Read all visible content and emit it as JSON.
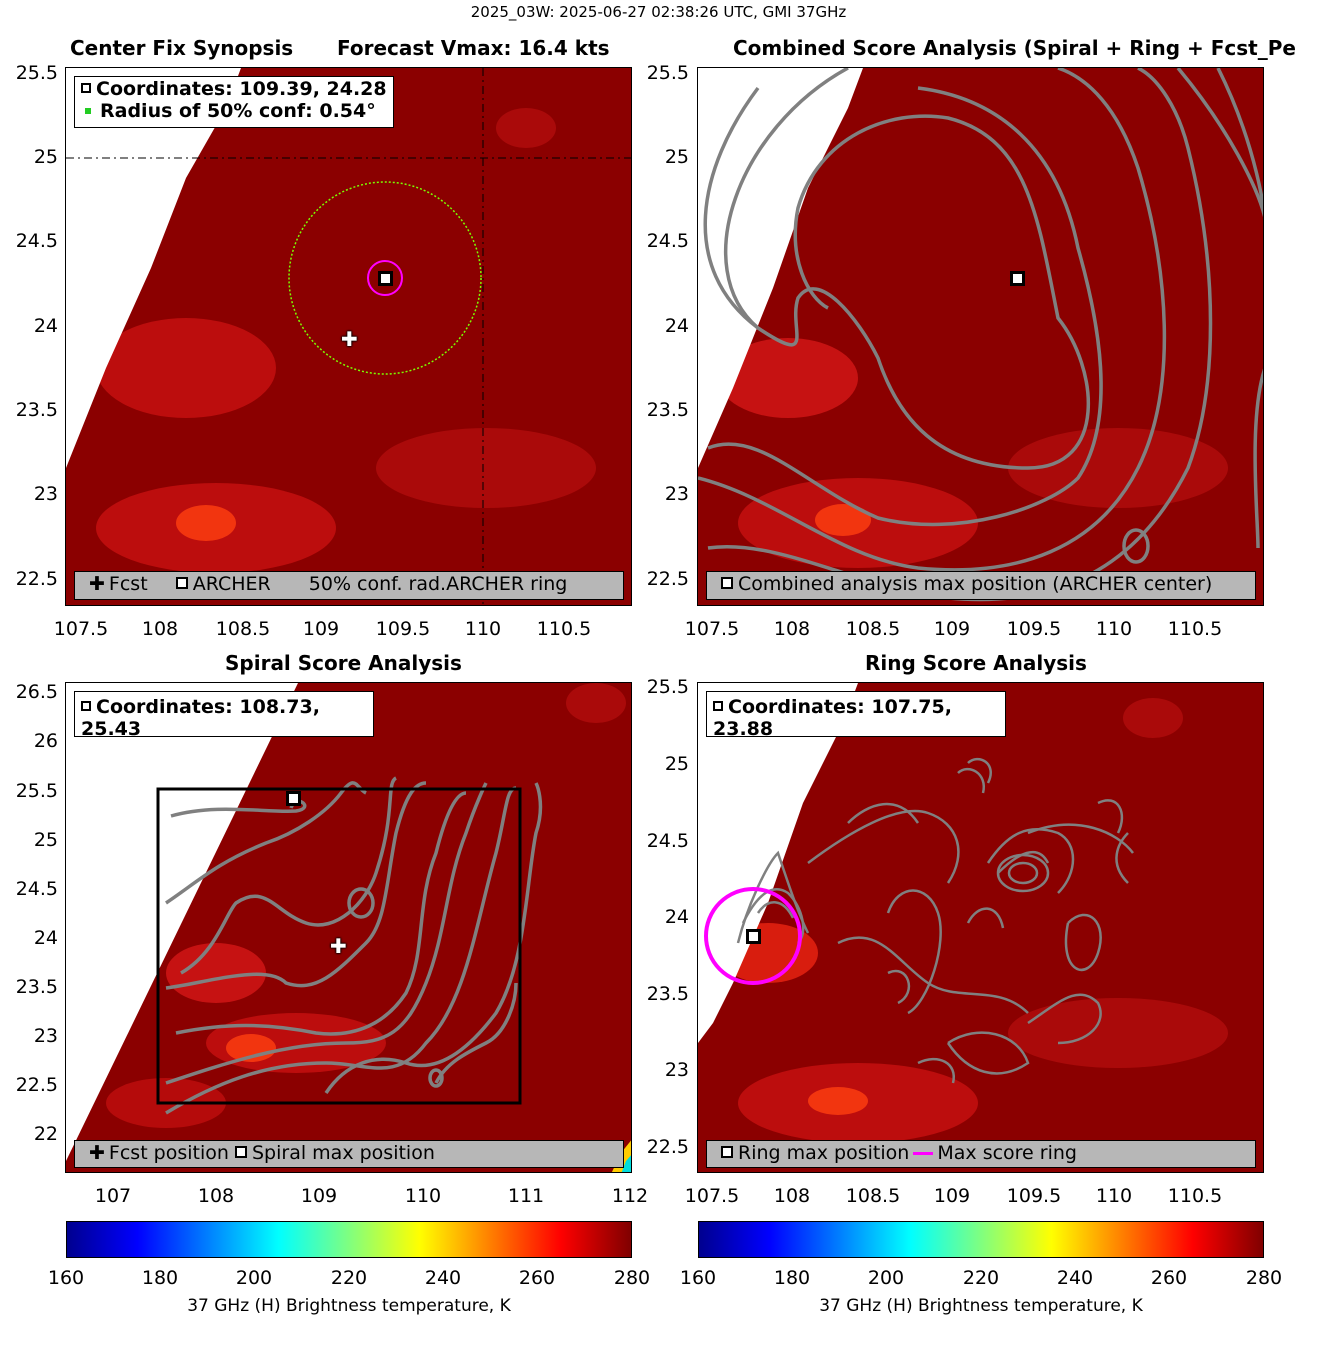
{
  "suptitle": "2025_03W: 2025-06-27 02:38:26 UTC, GMI 37GHz",
  "colors": {
    "background_tb": "#8b0000",
    "contour": "#808080",
    "conf_circle": "#7cfc00",
    "archer_ring": "#ff00ff",
    "legend_bg": "#b7b7b7",
    "no_data": "#ffffff"
  },
  "panels": {
    "tl": {
      "title_left": "Center Fix Synopsis",
      "title_right": "Forecast Vmax: 16.4 kts",
      "info": [
        "Coordinates: 109.39, 24.28",
        "Radius of 50% conf: 0.54°"
      ],
      "legend": {
        "fcst": "Fcst",
        "archer": "ARCHER",
        "conf": "50% conf. rad.",
        "ring": "ARCHER ring"
      },
      "yticks": [
        "25.5",
        "25",
        "24.5",
        "24",
        "23.5",
        "23",
        "22.5"
      ],
      "xticks": [
        "107.5",
        "108",
        "108.5",
        "109",
        "109.5",
        "110",
        "110.5"
      ]
    },
    "tr": {
      "title": "Combined Score Analysis (Spiral + Ring + Fcst_Pe",
      "legend": "Combined analysis max position (ARCHER center)",
      "yticks": [
        "25.5",
        "25",
        "24.5",
        "24",
        "23.5",
        "23",
        "22.5"
      ],
      "xticks": [
        "107.5",
        "108",
        "108.5",
        "109",
        "109.5",
        "110",
        "110.5"
      ]
    },
    "bl": {
      "title": "Spiral Score Analysis",
      "info": "Coordinates: 108.73, 25.43",
      "legend": {
        "fcst": "Fcst position",
        "spiral": "Spiral max position"
      },
      "yticks": [
        "26.5",
        "26",
        "25.5",
        "25",
        "24.5",
        "24",
        "23.5",
        "23",
        "22.5",
        "22"
      ],
      "xticks": [
        "107",
        "108",
        "109",
        "110",
        "111",
        "112"
      ]
    },
    "br": {
      "title": "Ring Score Analysis",
      "info": "Coordinates: 107.75, 23.88",
      "legend": {
        "ring": "Ring max position",
        "maxring": "Max score ring"
      },
      "yticks": [
        "25.5",
        "25",
        "24.5",
        "24",
        "23.5",
        "23",
        "22.5"
      ],
      "xticks": [
        "107.5",
        "108",
        "108.5",
        "109",
        "109.5",
        "110",
        "110.5"
      ]
    }
  },
  "colorbar": {
    "ticks": [
      "160",
      "180",
      "200",
      "220",
      "240",
      "260",
      "280"
    ],
    "label": "37 GHz (H) Brightness temperature, K"
  },
  "chart_data": [
    {
      "type": "heatmap",
      "title": "Center Fix Synopsis",
      "subtitle": "Forecast Vmax: 16.4 kts",
      "xlim": [
        107.5,
        110.9
      ],
      "ylim": [
        22.4,
        25.55
      ],
      "archer_center": [
        109.39,
        24.28
      ],
      "forecast_position": [
        109.2,
        23.93
      ],
      "conf_radius_deg": 0.54,
      "colorbar_range": [
        160,
        280
      ]
    },
    {
      "type": "heatmap",
      "title": "Combined Score Analysis (Spiral + Ring + Fcst_Pe",
      "xlim": [
        107.5,
        110.9
      ],
      "ylim": [
        22.4,
        25.55
      ],
      "max_position": [
        109.39,
        24.28
      ]
    },
    {
      "type": "heatmap",
      "title": "Spiral Score Analysis",
      "xlim": [
        106.6,
        112
      ],
      "ylim": [
        21.6,
        26.6
      ],
      "spiral_max": [
        108.73,
        25.43
      ],
      "forecast_position": [
        109.2,
        23.93
      ]
    },
    {
      "type": "heatmap",
      "title": "Ring Score Analysis",
      "xlim": [
        107.5,
        110.9
      ],
      "ylim": [
        22.4,
        25.55
      ],
      "ring_max": [
        107.75,
        23.88
      ]
    }
  ]
}
